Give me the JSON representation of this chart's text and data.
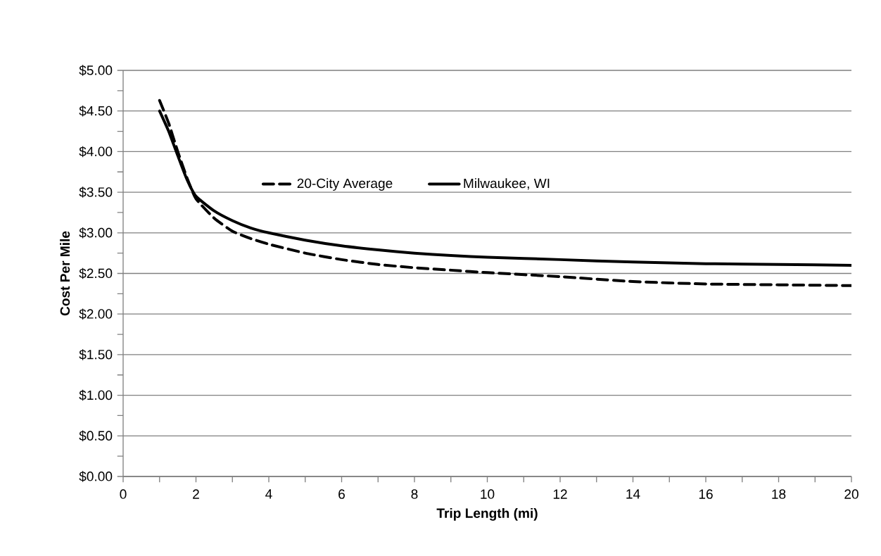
{
  "chart_data": {
    "type": "line",
    "xlabel": "Trip Length (mi)",
    "ylabel": "Cost Per Mile",
    "xlim": [
      0,
      20
    ],
    "xticks": [
      0,
      2,
      4,
      6,
      8,
      10,
      12,
      14,
      16,
      18,
      20
    ],
    "ylim": [
      0,
      5
    ],
    "yticks": [
      {
        "value": 0,
        "label": "$0.00"
      },
      {
        "value": 0.5,
        "label": "$0.50"
      },
      {
        "value": 1,
        "label": "$1.00"
      },
      {
        "value": 1.5,
        "label": "$1.50"
      },
      {
        "value": 2,
        "label": "$2.00"
      },
      {
        "value": 2.5,
        "label": "$2.50"
      },
      {
        "value": 3,
        "label": "$3.00"
      },
      {
        "value": 3.5,
        "label": "$3.50"
      },
      {
        "value": 4,
        "label": "$4.00"
      },
      {
        "value": 4.5,
        "label": "$4.50"
      },
      {
        "value": 5,
        "label": "$5.00"
      }
    ],
    "grid": "y",
    "legend": "top",
    "marker": "none",
    "x": [
      1,
      1.25,
      1.5,
      1.75,
      2,
      2.5,
      3,
      3.5,
      4,
      5,
      6,
      7,
      8,
      9,
      10,
      12,
      14,
      16,
      18,
      20
    ],
    "series": [
      {
        "name": "20-City Average",
        "color": "#000000",
        "line_style": "dashed",
        "values": [
          4.63,
          4.35,
          4.0,
          3.68,
          3.42,
          3.18,
          3.02,
          2.93,
          2.86,
          2.75,
          2.67,
          2.61,
          2.57,
          2.54,
          2.51,
          2.46,
          2.4,
          2.37,
          2.36,
          2.35
        ]
      },
      {
        "name": "Milwaukee, WI",
        "color": "#000000",
        "line_style": "solid",
        "values": [
          4.5,
          4.25,
          3.95,
          3.66,
          3.45,
          3.27,
          3.15,
          3.06,
          3.0,
          2.91,
          2.84,
          2.79,
          2.75,
          2.72,
          2.7,
          2.67,
          2.64,
          2.62,
          2.61,
          2.6
        ]
      }
    ]
  }
}
